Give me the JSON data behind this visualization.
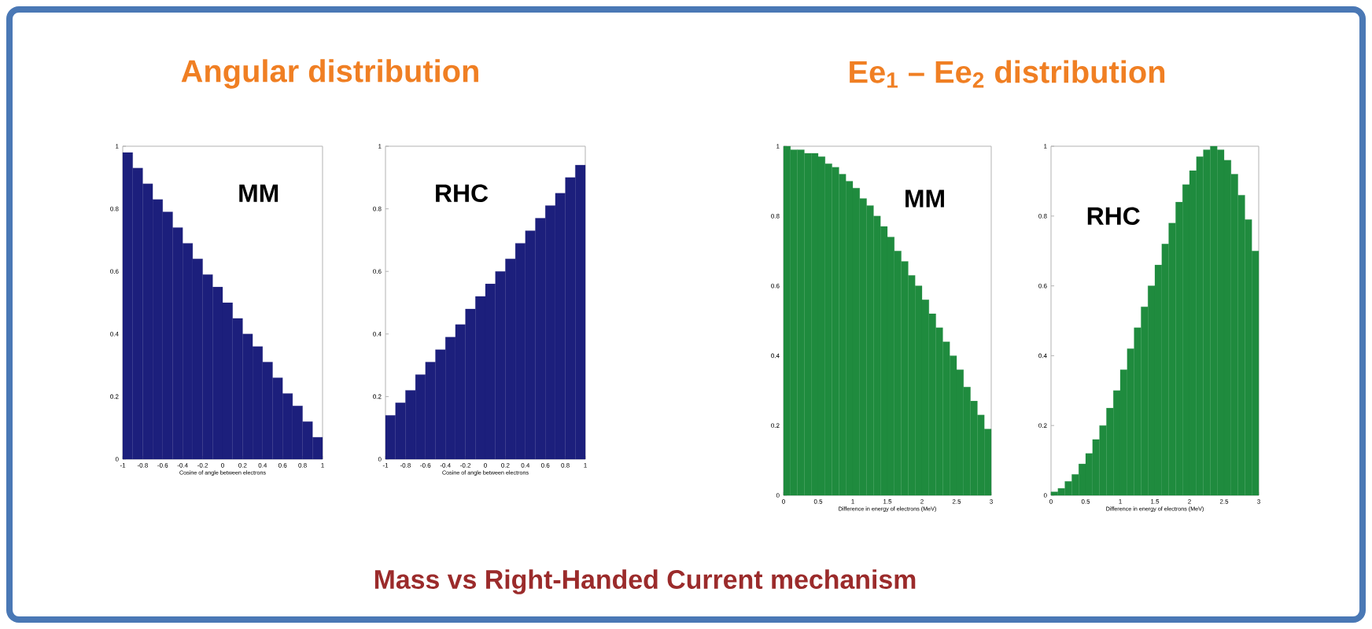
{
  "chart_data": [
    {
      "type": "histogram",
      "title": "Angular distribution",
      "xlabel": "Cosine of angle between electrons",
      "annotations": [
        "MM",
        "Mass vs Right-Handed Current mechanism"
      ],
      "color": "#1c1f7c",
      "bins": [
        -1,
        -0.9,
        -0.8,
        -0.7,
        -0.6,
        -0.5,
        -0.4,
        -0.3,
        -0.2,
        -0.1,
        0,
        0.1,
        0.2,
        0.3,
        0.4,
        0.5,
        0.6,
        0.7,
        0.8,
        0.9,
        1
      ],
      "values": [
        0.98,
        0.93,
        0.88,
        0.83,
        0.79,
        0.74,
        0.69,
        0.64,
        0.59,
        0.55,
        0.5,
        0.45,
        0.4,
        0.36,
        0.31,
        0.26,
        0.21,
        0.17,
        0.12,
        0.07
      ],
      "xlim": [
        -1,
        1
      ],
      "ylim": [
        0,
        1
      ],
      "xticks": [
        -1,
        -0.8,
        -0.6,
        -0.4,
        -0.2,
        0,
        0.2,
        0.4,
        0.6,
        0.8,
        1
      ],
      "yticks": [
        0,
        0.2,
        0.4,
        0.6,
        0.8,
        1
      ]
    },
    {
      "type": "histogram",
      "xlabel": "Cosine of angle between electrons",
      "annotations": [
        "RHC"
      ],
      "color": "#1c1f7c",
      "bins": [
        -1,
        -0.9,
        -0.8,
        -0.7,
        -0.6,
        -0.5,
        -0.4,
        -0.3,
        -0.2,
        -0.1,
        0,
        0.1,
        0.2,
        0.3,
        0.4,
        0.5,
        0.6,
        0.7,
        0.8,
        0.9,
        1
      ],
      "values": [
        0.14,
        0.18,
        0.22,
        0.27,
        0.31,
        0.35,
        0.39,
        0.43,
        0.48,
        0.52,
        0.56,
        0.6,
        0.64,
        0.69,
        0.73,
        0.77,
        0.81,
        0.85,
        0.9,
        0.94
      ],
      "xlim": [
        -1,
        1
      ],
      "ylim": [
        0,
        1
      ],
      "xticks": [
        -1,
        -0.8,
        -0.6,
        -0.4,
        -0.2,
        0,
        0.2,
        0.4,
        0.6,
        0.8,
        1
      ],
      "yticks": [
        0,
        0.2,
        0.4,
        0.6,
        0.8,
        1
      ]
    },
    {
      "type": "histogram",
      "title": "Ee$_{1}$ – Ee$_{2}$ distribution",
      "xlabel": "Difference in energy of electrons (MeV)",
      "annotations": [
        "MM"
      ],
      "color": "#1f8b3e",
      "bins": [
        0,
        0.1,
        0.2,
        0.3,
        0.4,
        0.5,
        0.6,
        0.7,
        0.8,
        0.9,
        1,
        1.1,
        1.2,
        1.3,
        1.4,
        1.5,
        1.6,
        1.7,
        1.8,
        1.9,
        2,
        2.1,
        2.2,
        2.3,
        2.4,
        2.5,
        2.6,
        2.7,
        2.8,
        2.9,
        3
      ],
      "values": [
        1.0,
        0.99,
        0.99,
        0.98,
        0.98,
        0.97,
        0.95,
        0.94,
        0.92,
        0.9,
        0.88,
        0.85,
        0.83,
        0.8,
        0.77,
        0.74,
        0.7,
        0.67,
        0.63,
        0.6,
        0.56,
        0.52,
        0.48,
        0.44,
        0.4,
        0.36,
        0.31,
        0.27,
        0.23,
        0.19
      ],
      "xlim": [
        0,
        3
      ],
      "ylim": [
        0,
        1
      ],
      "xticks": [
        0,
        0.5,
        1,
        1.5,
        2,
        2.5,
        3
      ],
      "yticks": [
        0,
        0.2,
        0.4,
        0.6,
        0.8,
        1
      ]
    },
    {
      "type": "histogram",
      "xlabel": "Difference in energy of electrons (MeV)",
      "annotations": [
        "RHC"
      ],
      "color": "#1f8b3e",
      "bins": [
        0,
        0.1,
        0.2,
        0.3,
        0.4,
        0.5,
        0.6,
        0.7,
        0.8,
        0.9,
        1,
        1.1,
        1.2,
        1.3,
        1.4,
        1.5,
        1.6,
        1.7,
        1.8,
        1.9,
        2,
        2.1,
        2.2,
        2.3,
        2.4,
        2.5,
        2.6,
        2.7,
        2.8,
        2.9,
        3
      ],
      "values": [
        0.01,
        0.02,
        0.04,
        0.06,
        0.09,
        0.12,
        0.16,
        0.2,
        0.25,
        0.3,
        0.36,
        0.42,
        0.48,
        0.54,
        0.6,
        0.66,
        0.72,
        0.78,
        0.84,
        0.89,
        0.93,
        0.97,
        0.99,
        1.0,
        0.99,
        0.96,
        0.92,
        0.86,
        0.79,
        0.7
      ],
      "xlim": [
        0,
        3
      ],
      "ylim": [
        0,
        1
      ],
      "xticks": [
        0,
        0.5,
        1,
        1.5,
        2,
        2.5,
        3
      ],
      "yticks": [
        0,
        0.2,
        0.4,
        0.6,
        0.8,
        1
      ]
    }
  ]
}
